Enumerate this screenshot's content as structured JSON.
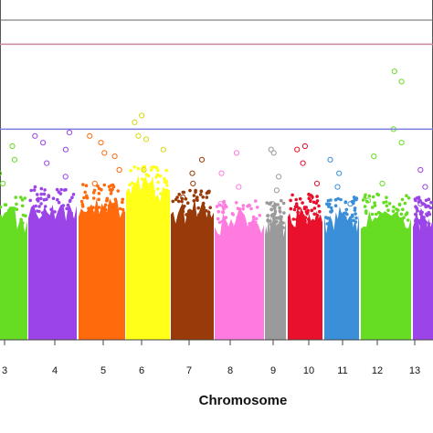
{
  "chart_data": {
    "type": "scatter",
    "title": "",
    "xlabel": "Chromosome",
    "ylabel": "",
    "grid": false,
    "legend": "none",
    "categories": [
      "3",
      "4",
      "5",
      "6",
      "7",
      "8",
      "9",
      "10",
      "11",
      "12",
      "13"
    ],
    "ylim": [
      0,
      10
    ],
    "thresholds": [
      {
        "value": 8.7,
        "color": "#c9899a"
      },
      {
        "value": 6.2,
        "color": "#7b7bdb"
      }
    ],
    "series": [
      {
        "category": "3",
        "color": "#66dd22",
        "base_level": 3.4,
        "top_values": [
          4.3,
          4.6,
          5.3,
          5.7,
          4.9
        ]
      },
      {
        "category": "4",
        "color": "#9b44e8",
        "base_level": 3.7,
        "top_values": [
          4.8,
          5.2,
          5.6,
          6.0,
          6.1,
          5.8
        ]
      },
      {
        "category": "5",
        "color": "#ff6a0d",
        "base_level": 3.8,
        "top_values": [
          4.6,
          5.0,
          5.4,
          5.8,
          6.0,
          5.5
        ]
      },
      {
        "category": "6",
        "color": "#ffff1a",
        "base_level": 4.3,
        "top_values": [
          5.0,
          5.6,
          6.0,
          6.4,
          6.6,
          5.9
        ]
      },
      {
        "category": "7",
        "color": "#993a0a",
        "base_level": 3.6,
        "top_values": [
          4.2,
          4.6,
          4.9,
          5.3
        ]
      },
      {
        "category": "8",
        "color": "#ff7be0",
        "base_level": 3.3,
        "top_values": [
          4.0,
          4.5,
          4.9,
          5.5
        ]
      },
      {
        "category": "9",
        "color": "#9a9a9a",
        "base_level": 3.3,
        "top_values": [
          4.0,
          4.4,
          4.8,
          5.5,
          5.6
        ]
      },
      {
        "category": "10",
        "color": "#e8102a",
        "base_level": 3.5,
        "top_values": [
          4.2,
          4.6,
          5.2,
          5.6,
          5.7
        ]
      },
      {
        "category": "11",
        "color": "#3a8fd8",
        "base_level": 3.4,
        "top_values": [
          4.0,
          4.5,
          4.9,
          5.3
        ]
      },
      {
        "category": "12",
        "color": "#66dd22",
        "base_level": 3.5,
        "top_values": [
          4.1,
          4.6,
          5.4,
          5.8,
          6.2,
          7.6,
          7.9
        ]
      },
      {
        "category": "13",
        "color": "#9b44e8",
        "base_level": 3.4,
        "top_values": [
          4.0,
          4.5,
          5.0
        ]
      }
    ]
  }
}
